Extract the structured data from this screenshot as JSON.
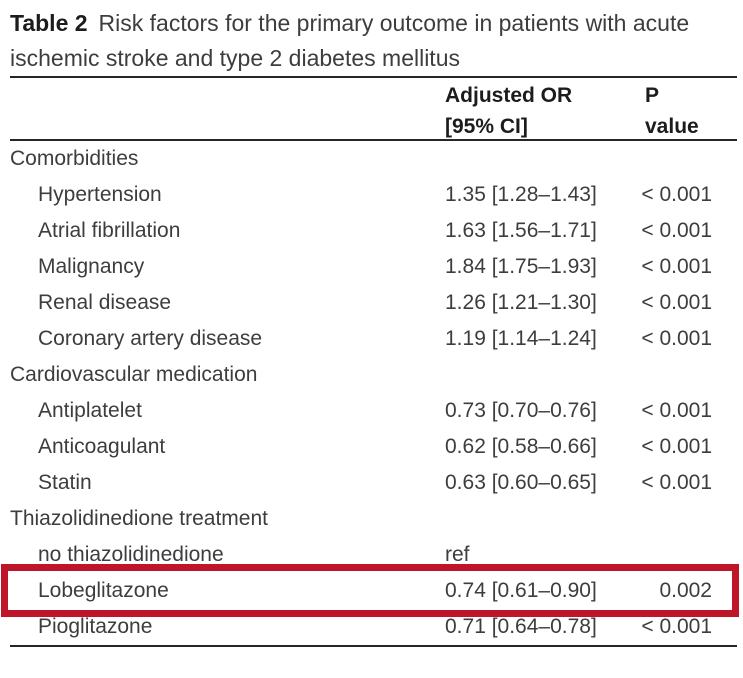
{
  "title": {
    "label": "Table 2",
    "caption": "Risk factors for the primary outcome in patients with acute ischemic stroke and type 2 diabetes mellitus"
  },
  "columns": {
    "or_header": "Adjusted OR\n[95% CI]",
    "p_header": "P\nvalue"
  },
  "rows": [
    {
      "label": "Comorbidities",
      "type": "section",
      "or": "",
      "p": ""
    },
    {
      "label": "Hypertension",
      "type": "item",
      "or": "1.35 [1.28–1.43]",
      "p": "< 0.001"
    },
    {
      "label": "Atrial fibrillation",
      "type": "item",
      "or": "1.63 [1.56–1.71]",
      "p": "< 0.001"
    },
    {
      "label": "Malignancy",
      "type": "item",
      "or": "1.84 [1.75–1.93]",
      "p": "< 0.001"
    },
    {
      "label": "Renal disease",
      "type": "item",
      "or": "1.26 [1.21–1.30]",
      "p": "< 0.001"
    },
    {
      "label": "Coronary artery disease",
      "type": "item",
      "or": "1.19 [1.14–1.24]",
      "p": "< 0.001"
    },
    {
      "label": "Cardiovascular medication",
      "type": "section",
      "or": "",
      "p": ""
    },
    {
      "label": "Antiplatelet",
      "type": "item",
      "or": "0.73 [0.70–0.76]",
      "p": "< 0.001"
    },
    {
      "label": "Anticoagulant",
      "type": "item",
      "or": "0.62 [0.58–0.66]",
      "p": "< 0.001"
    },
    {
      "label": "Statin",
      "type": "item",
      "or": "0.63 [0.60–0.65]",
      "p": "< 0.001"
    },
    {
      "label": "Thiazolidinedione treatment",
      "type": "section",
      "or": "",
      "p": ""
    },
    {
      "label": "no thiazolidinedione",
      "type": "item",
      "or": "ref",
      "p": ""
    },
    {
      "label": "Lobeglitazone",
      "type": "item",
      "or": "0.74 [0.61–0.90]",
      "p": "0.002",
      "highlighted": true
    },
    {
      "label": "Pioglitazone",
      "type": "item",
      "or": "0.71 [0.64–0.78]",
      "p": "< 0.001"
    }
  ],
  "highlight_box": {
    "color": "#be1528",
    "row_label": "Lobeglitazone"
  }
}
